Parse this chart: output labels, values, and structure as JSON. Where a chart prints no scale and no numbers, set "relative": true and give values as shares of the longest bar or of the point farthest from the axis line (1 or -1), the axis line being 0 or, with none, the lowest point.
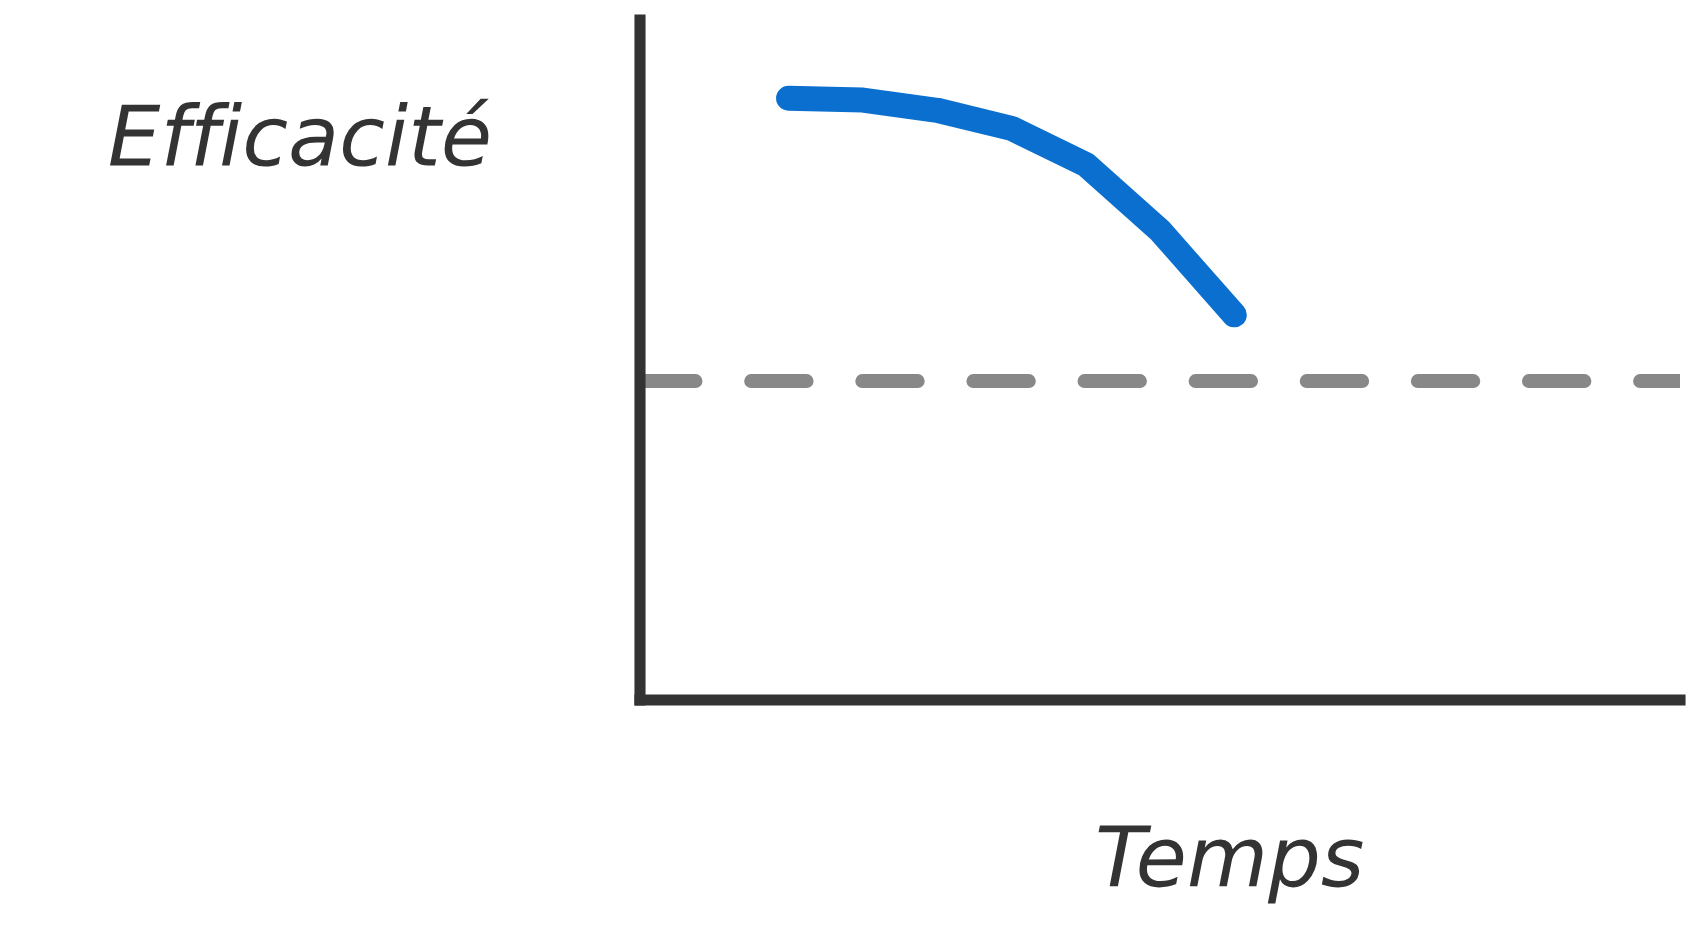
{
  "chart_data": {
    "type": "line",
    "relative": true,
    "xlabel": "Temps",
    "ylabel": "Efficacité",
    "categories": [
      null,
      null,
      null,
      null,
      null,
      null,
      null,
      null,
      null,
      null,
      null,
      null,
      null
    ],
    "series": [
      {
        "color": "#0a6fcf",
        "values": [
          null,
          1,
          0.997,
          0.98,
          0.95,
          0.89,
          0.78,
          0.64,
          null,
          null,
          null,
          null,
          null
        ]
      }
    ],
    "ref_lines": [
      {
        "axis": "y",
        "value": 0.53,
        "color": "#888888",
        "line_style": "dashed"
      }
    ],
    "legend": false,
    "line_style": "solid"
  }
}
